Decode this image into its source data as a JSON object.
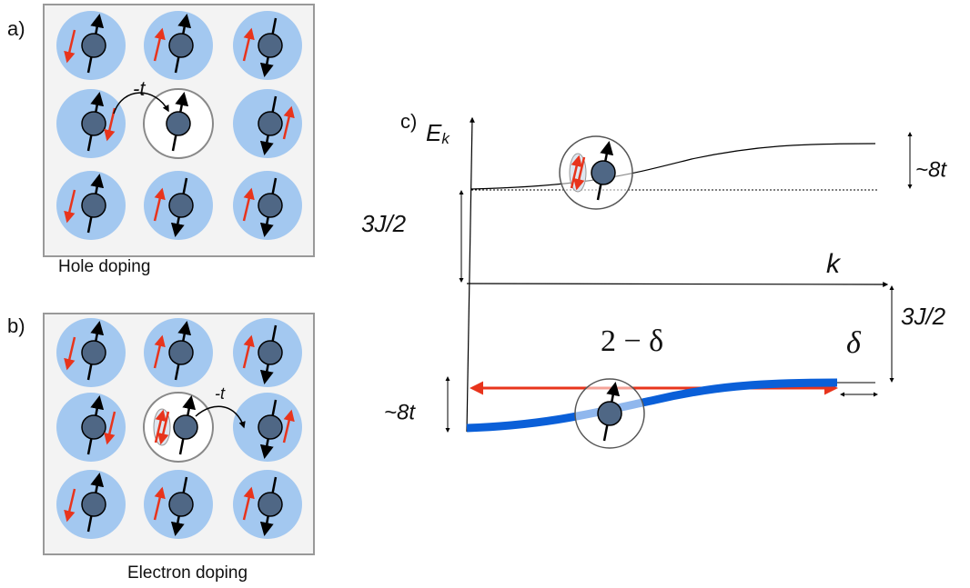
{
  "panel_a": {
    "label": "a)",
    "hopping": "-t",
    "caption": "Hole doping"
  },
  "panel_b": {
    "label": "b)",
    "hopping": "-t",
    "caption": "Electron doping"
  },
  "panel_c": {
    "label": "c)",
    "energy_axis": {
      "symbol": "E",
      "subscript": "k"
    },
    "momentum_axis": "k",
    "upper_band_width": "~8t",
    "upper_gap": "3J/2",
    "lower_gap": "3J/2",
    "lower_band_width": "~8t",
    "filling": "2 − δ",
    "remainder": "δ"
  }
}
